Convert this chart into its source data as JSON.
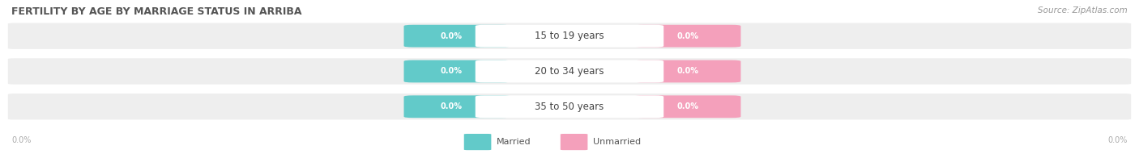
{
  "title": "FERTILITY BY AGE BY MARRIAGE STATUS IN ARRIBA",
  "source": "Source: ZipAtlas.com",
  "categories": [
    "15 to 19 years",
    "20 to 34 years",
    "35 to 50 years"
  ],
  "married_values": [
    0.0,
    0.0,
    0.0
  ],
  "unmarried_values": [
    0.0,
    0.0,
    0.0
  ],
  "married_color": "#62cac9",
  "unmarried_color": "#f4a0bb",
  "row_bg_color": "#eeeeee",
  "center_pill_color": "#ffffff",
  "axis_label_left": "0.0%",
  "axis_label_right": "0.0%",
  "background_color": "#ffffff",
  "title_fontsize": 9,
  "source_fontsize": 7.5,
  "legend_fontsize": 8,
  "value_fontsize": 7,
  "category_fontsize": 8.5,
  "axis_label_fontsize": 7
}
